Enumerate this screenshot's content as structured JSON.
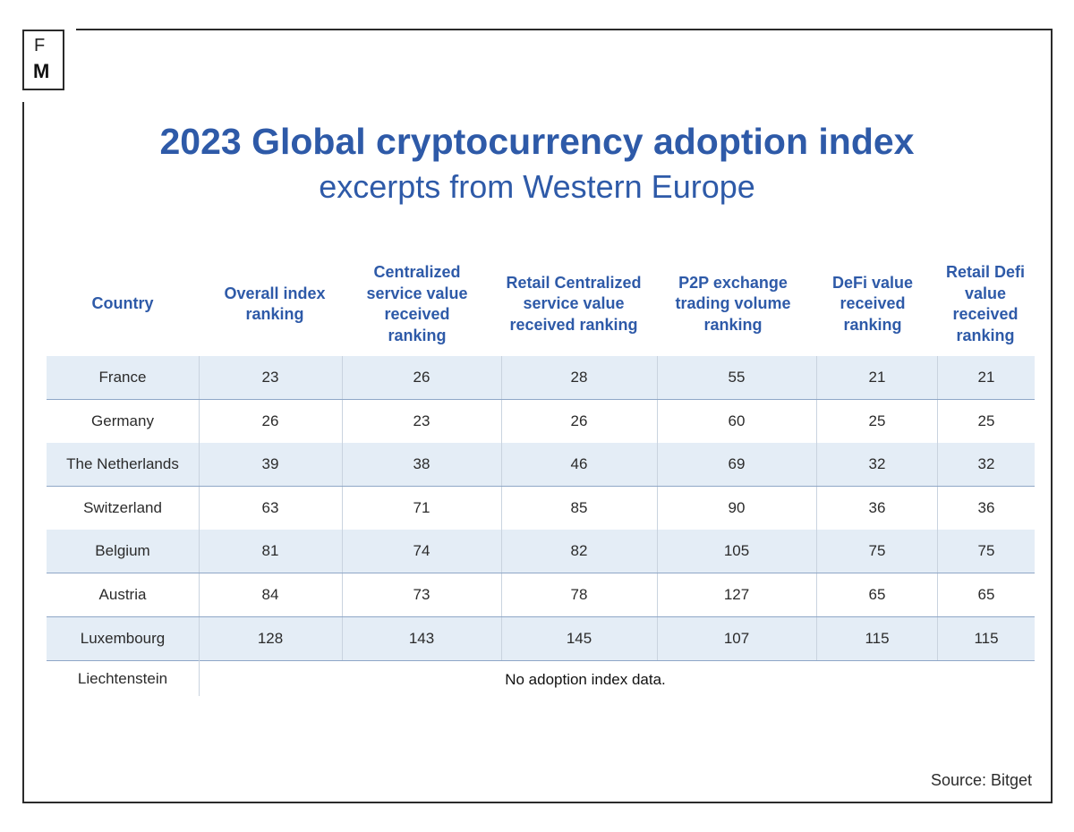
{
  "logo": {
    "top_letter": "F",
    "bottom_letter": "M"
  },
  "title": "2023 Global cryptocurrency adoption index",
  "subtitle": "excerpts from Western Europe",
  "columns": [
    "Country",
    "Overall index ranking",
    "Centralized service value received ranking",
    "Retail Centralized service value received ranking",
    "P2P exchange trading volume ranking",
    "DeFi value received ranking",
    "Retail Defi value received ranking"
  ],
  "rows": [
    {
      "country": "France",
      "values": [
        "23",
        "26",
        "28",
        "55",
        "21",
        "21"
      ]
    },
    {
      "country": "Germany",
      "values": [
        "26",
        "23",
        "26",
        "60",
        "25",
        "25"
      ]
    },
    {
      "country": "The Netherlands",
      "values": [
        "39",
        "38",
        "46",
        "69",
        "32",
        "32"
      ]
    },
    {
      "country": "Switzerland",
      "values": [
        "63",
        "71",
        "85",
        "90",
        "36",
        "36"
      ]
    },
    {
      "country": "Belgium",
      "values": [
        "81",
        "74",
        "82",
        "105",
        "75",
        "75"
      ]
    },
    {
      "country": "Austria",
      "values": [
        "84",
        "73",
        "78",
        "127",
        "65",
        "65"
      ]
    },
    {
      "country": "Luxembourg",
      "values": [
        "128",
        "143",
        "145",
        "107",
        "115",
        "115"
      ]
    }
  ],
  "last_row": {
    "country": "Liechtenstein",
    "note": "No adoption index data."
  },
  "source": "Source: Bitget",
  "colors": {
    "accent": "#2e5aa8",
    "row_shade": "#e4edf6",
    "frame": "#2b2b2b"
  }
}
